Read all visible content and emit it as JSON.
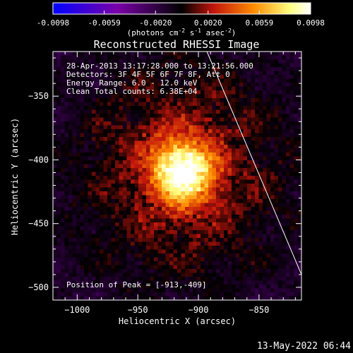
{
  "chart_data": {
    "type": "heatmap",
    "title": "Reconstructed RHESSI Image",
    "colorbar": {
      "ticks": [
        "-0.0098",
        "-0.0059",
        "-0.0020",
        "0.0020",
        "0.0059",
        "0.0098"
      ],
      "range": [
        -0.0098,
        0.0098
      ],
      "units_parts": [
        "(photons cm",
        "-2",
        " s",
        "-1",
        " asec",
        "-2",
        ")"
      ],
      "colors": [
        "#0000ff",
        "#7a00a8",
        "#000000",
        "#c0140c",
        "#ff8c00",
        "#ffff80",
        "#ffffff"
      ]
    },
    "xlabel": "Heliocentric X (arcsec)",
    "ylabel": "Heliocentric Y (arcsec)",
    "xlim": [
      -1020,
      -815
    ],
    "ylim": [
      -510,
      -315
    ],
    "xticks": [
      -1000,
      -950,
      -900,
      -850
    ],
    "yticks": [
      -350,
      -400,
      -450,
      -500
    ],
    "annotations": [
      "28-Apr-2013 13:17:28.000 to 13:21:56.000",
      "Detectors: 3F 4F 5F 6F 7F 8F, Att 0",
      "Energy Range: 6.0 - 12.0 keV",
      "Clean    Total counts: 6.38E+04"
    ],
    "peak_label": "Position of Peak = [-913,-409]",
    "peak": {
      "x": -913,
      "y": -409
    },
    "limb_line": [
      [
        -893,
        -315
      ],
      [
        -815,
        -490
      ]
    ],
    "footer_date": "13-May-2022 06:44"
  }
}
